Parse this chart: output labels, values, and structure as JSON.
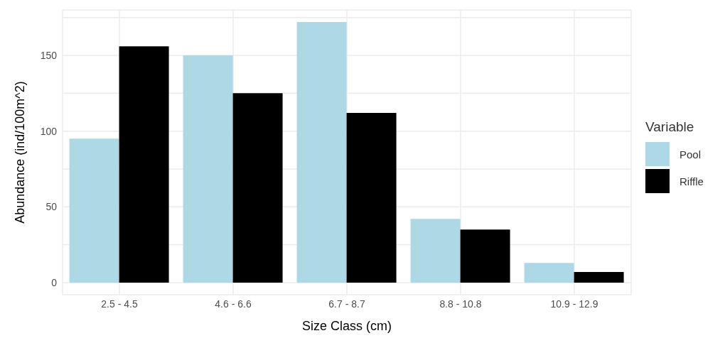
{
  "chart_data": {
    "type": "bar",
    "xlabel": "Size Class (cm)",
    "ylabel": "Abundance (ind/100m^2)",
    "legend_title": "Variable",
    "categories": [
      "2.5 - 4.5",
      "4.6 - 6.6",
      "6.7 - 8.7",
      "8.8 - 10.8",
      "10.9 - 12.9"
    ],
    "series": [
      {
        "name": "Pool",
        "color": "#add8e6",
        "values": [
          95,
          150,
          172,
          42,
          13
        ]
      },
      {
        "name": "Riffle",
        "color": "#000000",
        "values": [
          156,
          125,
          112,
          35,
          7
        ]
      }
    ],
    "ylim": [
      -8,
      180
    ],
    "yticks": [
      0,
      {
        "value": 25,
        "label": null
      },
      50,
      {
        "value": 75,
        "label": null
      },
      100,
      {
        "value": 125,
        "label": null
      },
      150,
      {
        "value": 175,
        "label": null
      }
    ],
    "grid": true,
    "legend": "right"
  }
}
